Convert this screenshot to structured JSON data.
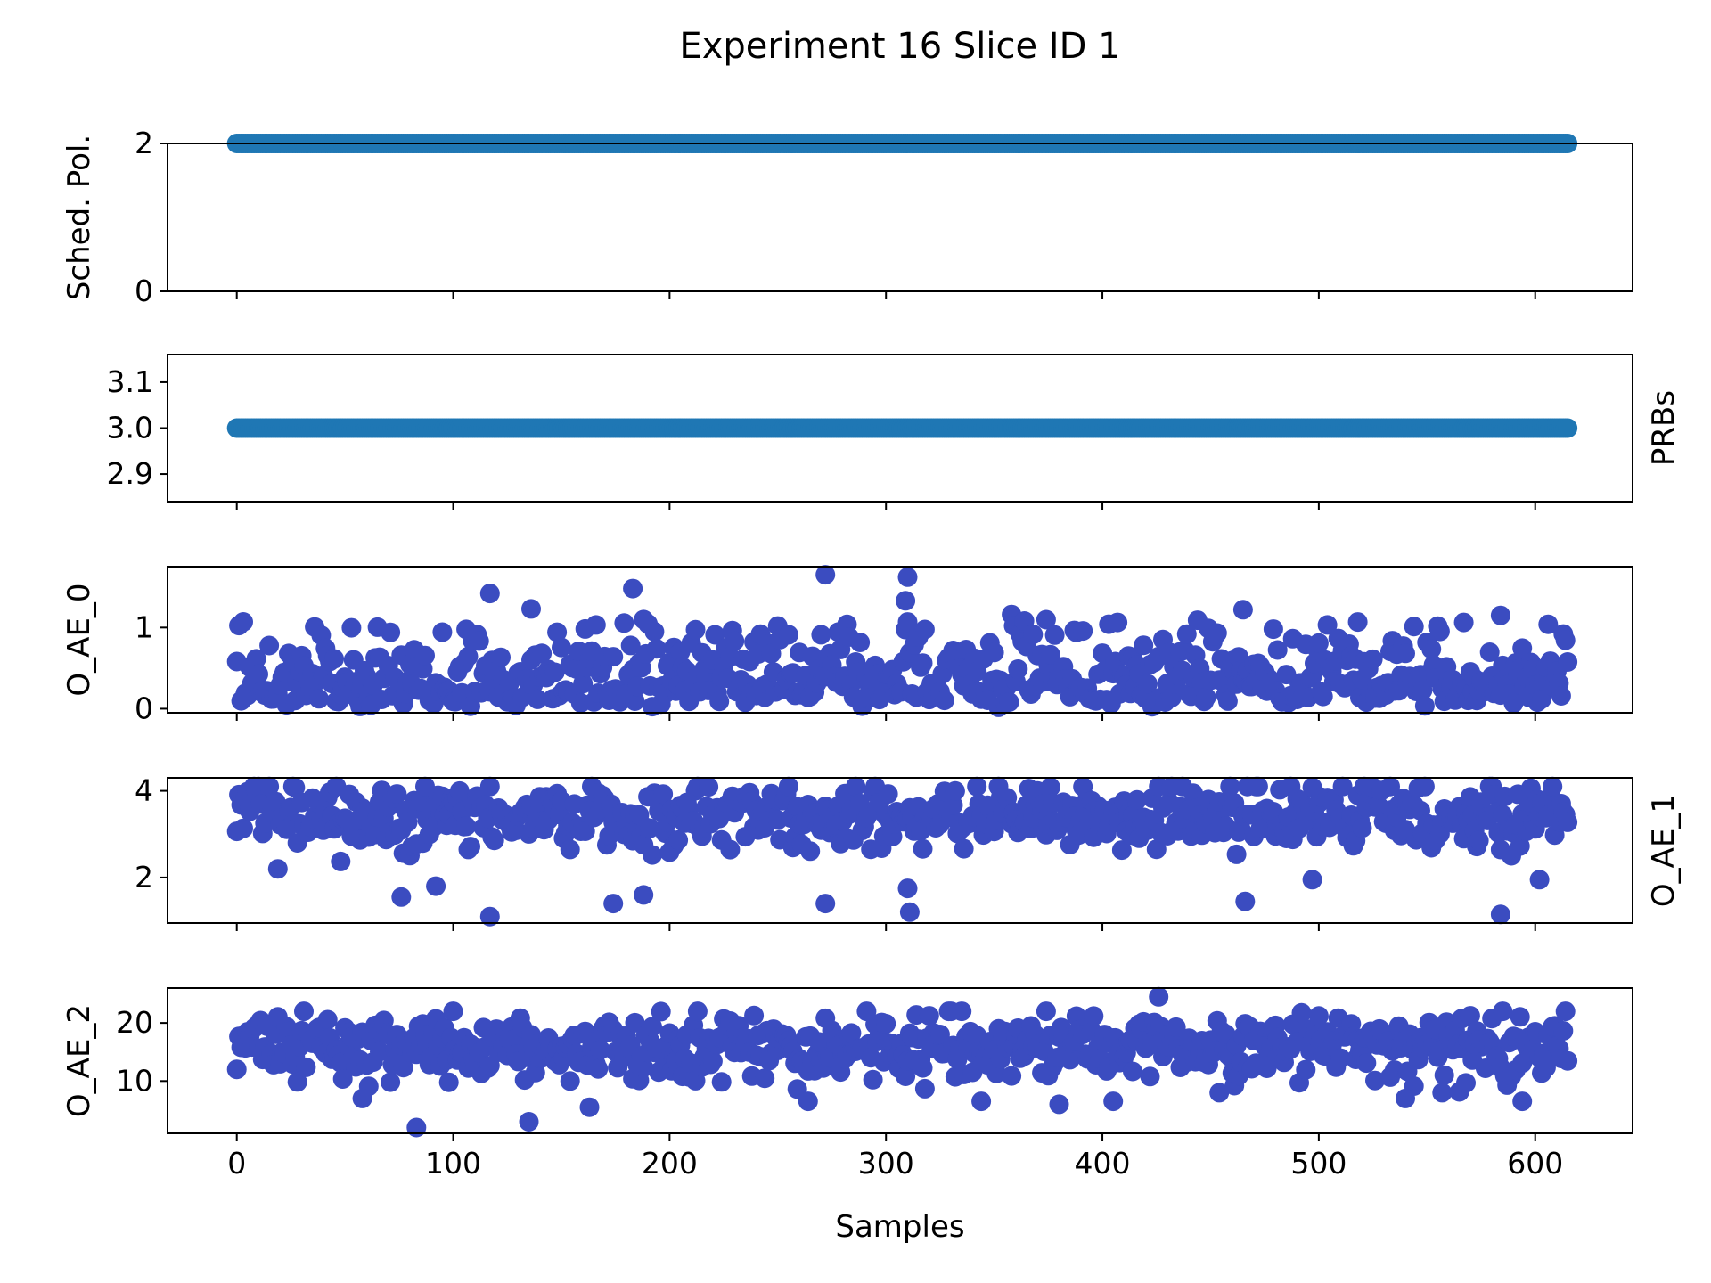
{
  "title": "Experiment 16 Slice ID 1",
  "xlabel": "Samples",
  "x_range": [
    0,
    615
  ],
  "x_ticks": [
    "0",
    "100",
    "200",
    "300",
    "400",
    "500",
    "600"
  ],
  "chart_data": [
    {
      "type": "scatter",
      "ylabel": "Sched. Pol.",
      "ylabel_side": "left",
      "ylim": [
        0,
        2
      ],
      "y_ticks": [
        "0",
        "2"
      ],
      "color": "#1f77b4",
      "series": [
        {
          "pattern": "constant",
          "value": 2,
          "x_range": [
            0,
            615
          ]
        }
      ]
    },
    {
      "type": "scatter",
      "ylabel": "PRBs",
      "ylabel_side": "right",
      "ylim": [
        2.84,
        3.16
      ],
      "y_ticks": [
        "2.9",
        "3.0",
        "3.1"
      ],
      "color": "#1f77b4",
      "series": [
        {
          "pattern": "constant",
          "value": 3,
          "x_range": [
            0,
            615
          ]
        }
      ]
    },
    {
      "type": "scatter",
      "ylabel": "O_AE_0",
      "ylabel_side": "left",
      "ylim": [
        -0.05,
        1.75
      ],
      "y_ticks": [
        "0",
        "1"
      ],
      "color": "#3b4cc0",
      "series": [
        {
          "pattern": "noisy",
          "range": [
            0.0,
            1.2
          ],
          "typical": 0.4,
          "outliers": [
            [
              117,
              1.42
            ],
            [
              136,
              1.23
            ],
            [
              183,
              1.48
            ],
            [
              272,
              1.65
            ],
            [
              310,
              1.62
            ],
            [
              309,
              1.33
            ],
            [
              465,
              1.22
            ],
            [
              584,
              1.15
            ]
          ]
        }
      ]
    },
    {
      "type": "scatter",
      "ylabel": "O_AE_1",
      "ylabel_side": "right",
      "ylim": [
        0.95,
        4.3
      ],
      "y_ticks": [
        "2",
        "4"
      ],
      "color": "#3b4cc0",
      "series": [
        {
          "pattern": "noisy",
          "range": [
            2.2,
            4.1
          ],
          "typical": 3.4,
          "outliers": [
            [
              117,
              1.1
            ],
            [
              311,
              1.2
            ],
            [
              584,
              1.15
            ],
            [
              76,
              1.55
            ],
            [
              92,
              1.8
            ],
            [
              272,
              1.4
            ],
            [
              466,
              1.45
            ],
            [
              174,
              1.4
            ],
            [
              188,
              1.6
            ],
            [
              310,
              1.75
            ],
            [
              602,
              1.95
            ],
            [
              497,
              1.95
            ]
          ]
        }
      ]
    },
    {
      "type": "scatter",
      "ylabel": "O_AE_2",
      "ylabel_side": "left",
      "ylim": [
        1,
        26
      ],
      "y_ticks": [
        "10",
        "20"
      ],
      "color": "#3b4cc0",
      "series": [
        {
          "pattern": "noisy",
          "range": [
            8,
            22
          ],
          "typical": 16,
          "outliers": [
            [
              83,
              2
            ],
            [
              135,
              3
            ],
            [
              426,
              24.5
            ],
            [
              163,
              5.5
            ],
            [
              58,
              7
            ],
            [
              264,
              6.5
            ],
            [
              380,
              6
            ],
            [
              405,
              6.5
            ],
            [
              594,
              6.5
            ],
            [
              540,
              7
            ],
            [
              344,
              6.5
            ]
          ]
        }
      ]
    }
  ]
}
